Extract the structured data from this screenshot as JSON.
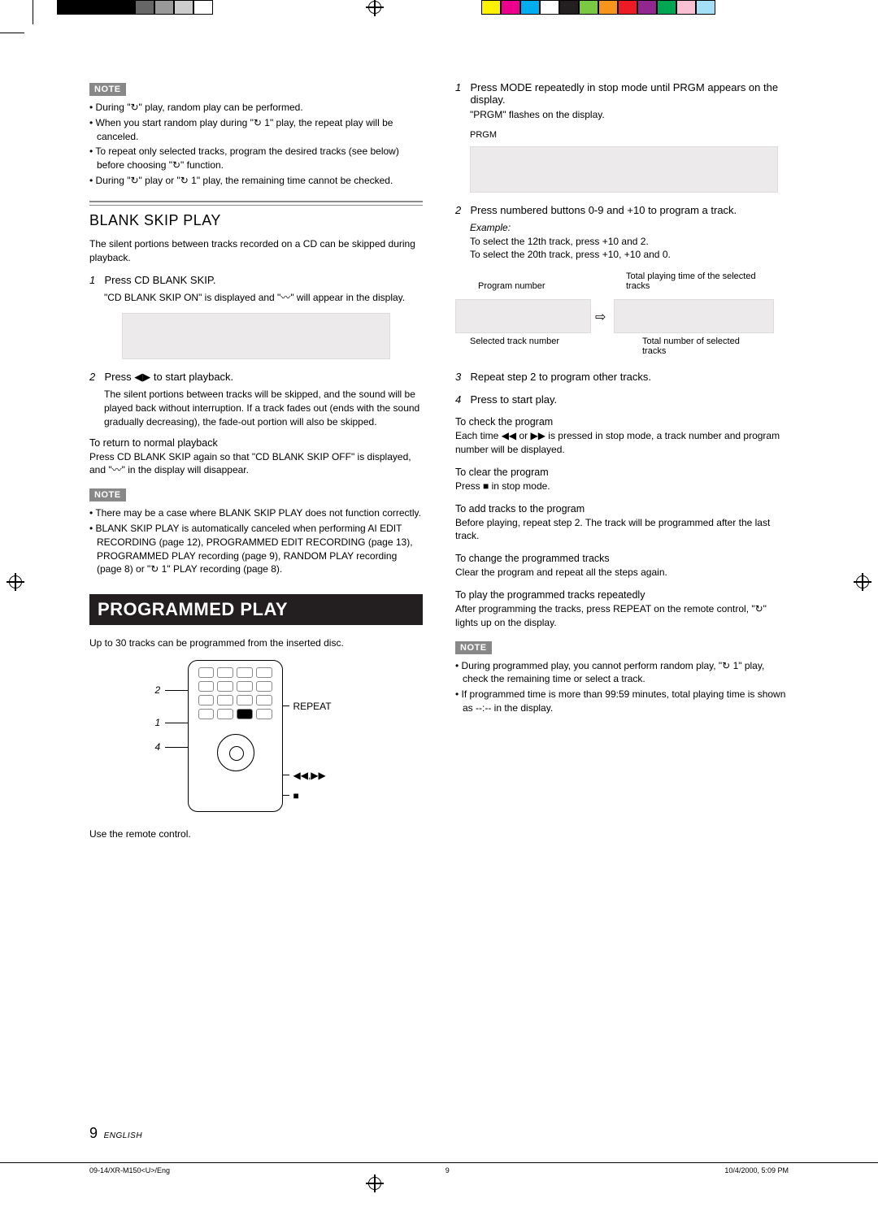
{
  "reg_marks": {
    "top_left": true,
    "top_center": true,
    "top_right": true,
    "mid_left": true,
    "mid_right": true,
    "bottom_center": true
  },
  "color_bar_left": [
    "#000",
    "#000",
    "#000",
    "#000",
    "#666",
    "#999",
    "#ccc",
    "#fff"
  ],
  "color_bar_right": [
    "#fff100",
    "#ec008c",
    "#00aeef",
    "#fff",
    "#231f20",
    "#7ac943",
    "#f7941d",
    "#ed1c24",
    "#92278f",
    "#00a651",
    "#f9c0d4",
    "#a3dff7"
  ],
  "note_label": "NOTE",
  "left": {
    "note1_bullets": [
      "During \"↻\" play, random play can be performed.",
      "When you start random play during \"↻ 1\" play, the repeat play will be canceled.",
      "To repeat only selected tracks, program the desired tracks (see below) before choosing \"↻\" function.",
      "During \"↻\" play or \"↻ 1\" play, the remaining time cannot be checked."
    ],
    "section_title": "BLANK SKIP PLAY",
    "intro": "The silent portions between tracks recorded on a CD can be skipped during playback.",
    "step1_head": "Press CD BLANK SKIP.",
    "step1_body": "\"CD BLANK SKIP ON\" is displayed and \"〰\" will appear in the display.",
    "step2_head": "Press ◀▶ to start playback.",
    "step2_body": "The silent portions between tracks will be skipped, and the sound will be played back without interruption. If a track fades out (ends with the sound gradually decreasing), the fade-out portion will also be skipped.",
    "return_head": "To return to normal playback",
    "return_body": "Press CD BLANK SKIP  again so that \"CD BLANK SKIP OFF\" is displayed, and \"〰\" in the display will disappear.",
    "note2_bullets": [
      "There may be a case where BLANK SKIP PLAY does not function correctly.",
      "BLANK SKIP PLAY is automatically canceled when performing AI EDIT RECORDING (page 12), PROGRAMMED EDIT RECORDING (page 13), PROGRAMMED PLAY recording (page 9), RANDOM PLAY recording (page 8) or \"↻ 1\" PLAY recording (page 8)."
    ],
    "banner": "PROGRAMMED PLAY",
    "prog_intro": "Up to 30 tracks can be programmed from the inserted disc.",
    "remote_labels": {
      "n2": "2",
      "n1": "1",
      "n4": "4",
      "repeat": "REPEAT",
      "skip": "◀◀,▶▶",
      "stop": "■"
    },
    "use_remote": "Use the remote control."
  },
  "right": {
    "step1_head": "Press MODE repeatedly in stop mode until PRGM  appears on the display.",
    "step1_body": "\"PRGM\" flashes on the display.",
    "prgm_label": "PRGM",
    "step2_head": "Press numbered buttons 0-9 and +10 to program a track.",
    "step2_ex_label": "Example:",
    "step2_ex1": "To select the 12th track, press +10 and 2.",
    "step2_ex2": "To select the 20th track, press +10, +10 and 0.",
    "annot": {
      "prog_num": "Program number",
      "total_time": "Total playing time of the selected tracks",
      "sel_track": "Selected track number",
      "total_sel": "Total number of selected tracks"
    },
    "step3_head": "Repeat step 2 to program other tracks.",
    "step4_head": "Press      to start play.",
    "check_head": "To check the program",
    "check_body": "Each time ◀◀ or ▶▶ is pressed in stop mode, a track number and program number will be displayed.",
    "clear_head": "To clear the program",
    "clear_body": "Press ■ in stop mode.",
    "add_head": "To add tracks to the program",
    "add_body": "Before playing, repeat step 2. The track will be programmed after the last track.",
    "change_head": "To change the programmed tracks",
    "change_body": "Clear the program and repeat all the steps again.",
    "repeat_head": "To play the programmed tracks repeatedly",
    "repeat_body": "After programming the tracks, press REPEAT on the remote control, \"↻\" lights up on the display.",
    "note3_bullets": [
      "During programmed play, you cannot perform random play, \"↻ 1\" play, check the remaining time or select a track.",
      "If programmed time is more than 99:59 minutes, total playing time is shown as --:-- in the display."
    ]
  },
  "page_number": "9",
  "page_lang": "ENGLISH",
  "footer_left": "09-14/XR-M150<U>/Eng",
  "footer_center": "9",
  "footer_right": "10/4/2000, 5:09 PM"
}
